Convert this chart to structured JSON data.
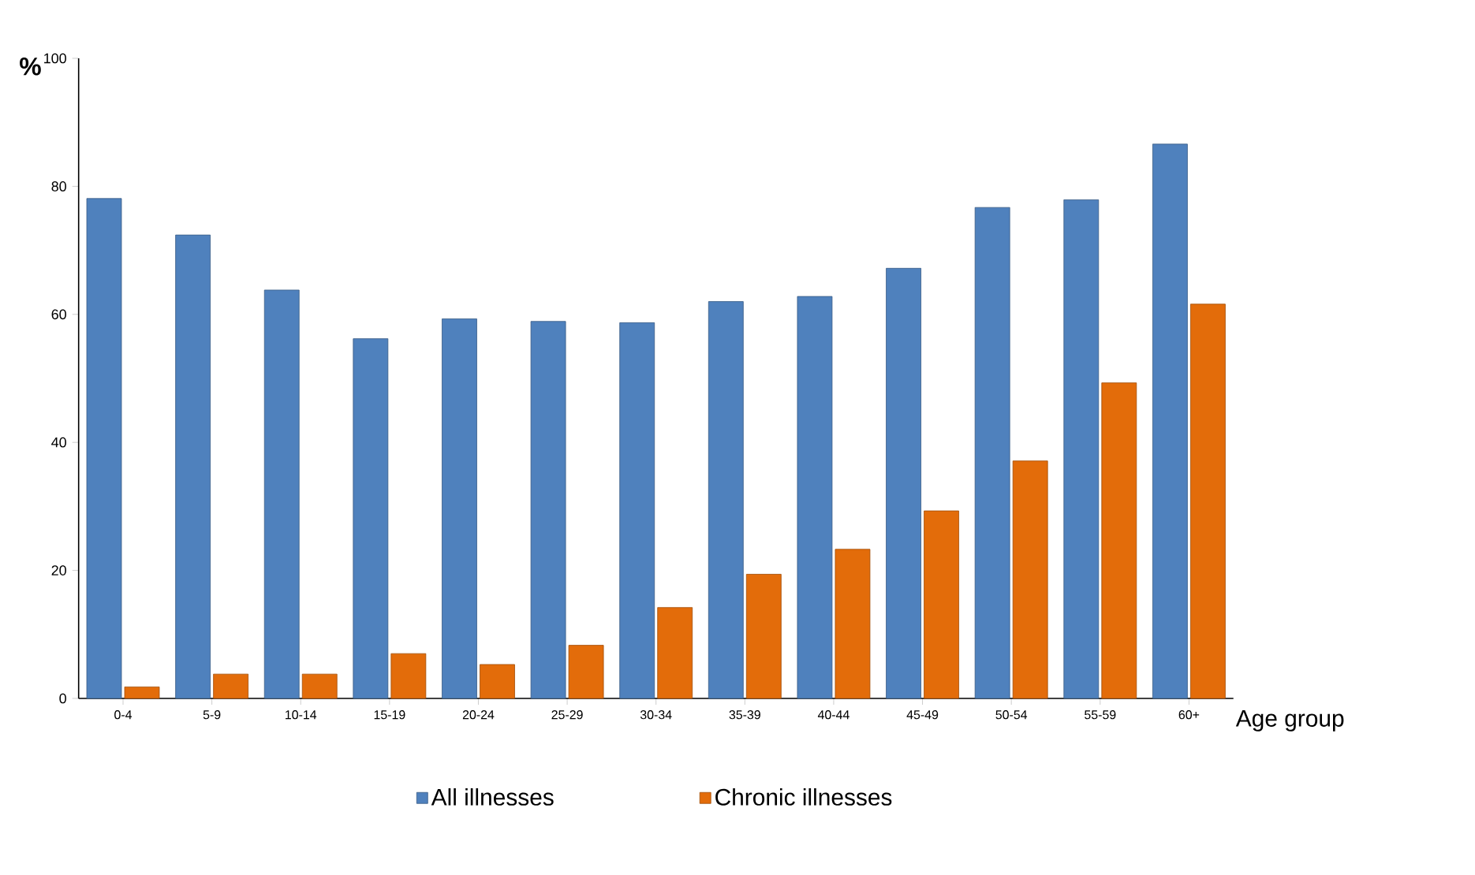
{
  "chart_data": {
    "type": "bar",
    "xlabel": "Age group",
    "ylabel": "%",
    "categories": [
      "0-4",
      "5-9",
      "10-14",
      "15-19",
      "20-24",
      "25-29",
      "30-34",
      "35-39",
      "40-44",
      "45-49",
      "50-54",
      "55-59",
      "60+"
    ],
    "series": [
      {
        "name": "All illnesses",
        "color": "#4f81bd",
        "values": [
          78.1,
          72.4,
          63.8,
          56.2,
          59.3,
          58.9,
          58.7,
          62.0,
          62.8,
          67.2,
          76.7,
          77.9,
          86.6
        ]
      },
      {
        "name": "Chronic illnesses",
        "color": "#e36c0a",
        "values": [
          1.8,
          3.8,
          3.8,
          7.0,
          5.3,
          8.3,
          14.2,
          19.4,
          23.3,
          29.3,
          37.1,
          49.3,
          61.6
        ]
      }
    ],
    "ylim": [
      0,
      100
    ],
    "yticks": [
      0,
      20,
      40,
      60,
      80,
      100
    ],
    "legend": "bottom"
  }
}
